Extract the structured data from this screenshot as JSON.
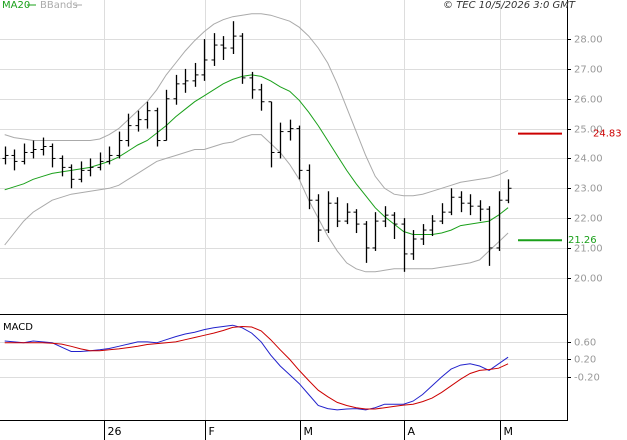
{
  "chart_data": [
    {
      "type": "ohlc",
      "copyright": "© TEC 10/5/2026 3:0 GMT",
      "xlim": [
        -0.5,
        59.2
      ],
      "xticks": [
        {
          "value": 10.4,
          "label": "26"
        },
        {
          "value": 21.05,
          "label": "F"
        },
        {
          "value": 31.05,
          "label": "M"
        },
        {
          "value": 42,
          "label": "A"
        },
        {
          "value": 52.1,
          "label": "M"
        }
      ],
      "ylim": [
        18.82,
        29.31
      ],
      "yticks": [
        {
          "value": 20,
          "label": "20.00"
        },
        {
          "value": 21,
          "label": "21.00"
        },
        {
          "value": 22,
          "label": "22.00"
        },
        {
          "value": 23,
          "label": "23.00"
        },
        {
          "value": 24,
          "label": "24.00"
        },
        {
          "value": 25,
          "label": "25.00"
        },
        {
          "value": 26,
          "label": "26.00"
        },
        {
          "value": 27,
          "label": "27.00"
        },
        {
          "value": 28,
          "label": "28.00"
        }
      ],
      "grid": true,
      "color": "#000000",
      "ohlc": [
        [
          24.0,
          24.4,
          23.8,
          24.1
        ],
        [
          24.1,
          24.3,
          23.6,
          23.9
        ],
        [
          23.9,
          24.5,
          23.8,
          24.2
        ],
        [
          24.2,
          24.6,
          24.0,
          24.3
        ],
        [
          24.3,
          24.7,
          24.1,
          24.4
        ],
        [
          24.4,
          24.5,
          23.7,
          24.0
        ],
        [
          24.0,
          24.1,
          23.4,
          23.7
        ],
        [
          23.7,
          23.8,
          23.0,
          23.3
        ],
        [
          23.3,
          23.9,
          23.2,
          23.6
        ],
        [
          23.6,
          24.0,
          23.4,
          23.7
        ],
        [
          23.7,
          24.2,
          23.6,
          23.9
        ],
        [
          23.9,
          24.4,
          23.8,
          24.1
        ],
        [
          24.1,
          24.9,
          24.0,
          24.6
        ],
        [
          24.6,
          25.5,
          24.4,
          25.1
        ],
        [
          25.1,
          25.6,
          24.9,
          25.3
        ],
        [
          25.3,
          25.9,
          25.0,
          25.6
        ],
        [
          25.6,
          25.7,
          24.4,
          24.6
        ],
        [
          24.6,
          26.3,
          24.6,
          26.0
        ],
        [
          26.0,
          26.8,
          25.8,
          26.5
        ],
        [
          26.5,
          27.0,
          26.2,
          26.6
        ],
        [
          26.6,
          27.2,
          26.4,
          26.8
        ],
        [
          26.8,
          28.0,
          26.6,
          27.3
        ],
        [
          27.3,
          28.2,
          27.1,
          27.8
        ],
        [
          27.8,
          28.1,
          27.3,
          27.7
        ],
        [
          27.7,
          28.6,
          27.5,
          28.1
        ],
        [
          28.1,
          28.2,
          26.5,
          26.7
        ],
        [
          26.7,
          26.9,
          26.0,
          26.3
        ],
        [
          26.3,
          26.5,
          25.6,
          25.9
        ],
        [
          25.9,
          25.9,
          23.7,
          24.2
        ],
        [
          24.2,
          25.2,
          24.0,
          24.9
        ],
        [
          24.9,
          25.3,
          24.6,
          25.0
        ],
        [
          25.0,
          25.1,
          23.3,
          23.6
        ],
        [
          23.6,
          23.8,
          22.3,
          22.6
        ],
        [
          22.6,
          22.8,
          21.2,
          21.6
        ],
        [
          21.6,
          22.9,
          21.5,
          22.5
        ],
        [
          22.5,
          22.7,
          21.7,
          21.9
        ],
        [
          21.9,
          22.5,
          21.8,
          22.2
        ],
        [
          22.2,
          22.3,
          21.5,
          21.8
        ],
        [
          21.8,
          21.9,
          20.5,
          21.0
        ],
        [
          21.0,
          22.2,
          20.9,
          21.9
        ],
        [
          21.9,
          22.4,
          21.7,
          22.1
        ],
        [
          22.1,
          22.2,
          21.3,
          21.8
        ],
        [
          21.8,
          22.0,
          20.2,
          20.8
        ],
        [
          20.8,
          21.6,
          20.6,
          21.3
        ],
        [
          21.3,
          21.8,
          21.1,
          21.6
        ],
        [
          21.6,
          22.1,
          21.4,
          21.9
        ],
        [
          21.9,
          22.5,
          21.8,
          22.2
        ],
        [
          22.2,
          23.0,
          22.1,
          22.7
        ],
        [
          22.7,
          22.9,
          22.2,
          22.5
        ],
        [
          22.5,
          22.8,
          22.1,
          22.4
        ],
        [
          22.4,
          22.6,
          21.9,
          22.3
        ],
        [
          22.3,
          22.4,
          20.4,
          21.0
        ],
        [
          21.0,
          22.9,
          20.9,
          22.6
        ],
        [
          22.6,
          23.3,
          22.5,
          23.0
        ]
      ],
      "series": [
        {
          "name": "MA20",
          "color": "#1aa01a",
          "values": [
            22.95,
            23.05,
            23.15,
            23.3,
            23.4,
            23.5,
            23.55,
            23.6,
            23.65,
            23.7,
            23.8,
            23.9,
            24.05,
            24.25,
            24.45,
            24.6,
            24.85,
            25.1,
            25.4,
            25.65,
            25.9,
            26.1,
            26.3,
            26.5,
            26.65,
            26.75,
            26.8,
            26.75,
            26.6,
            26.4,
            26.25,
            25.95,
            25.55,
            25.1,
            24.6,
            24.1,
            23.6,
            23.15,
            22.75,
            22.35,
            22.05,
            21.8,
            21.55,
            21.45,
            21.45,
            21.45,
            21.5,
            21.6,
            21.75,
            21.8,
            21.85,
            21.9,
            22.1,
            22.35
          ]
        },
        {
          "name": "BBands",
          "color": "#aaaaaa",
          "upper": [
            24.8,
            24.7,
            24.65,
            24.6,
            24.6,
            24.6,
            24.6,
            24.6,
            24.6,
            24.6,
            24.65,
            24.8,
            25.0,
            25.3,
            25.6,
            25.9,
            26.3,
            26.8,
            27.2,
            27.6,
            27.95,
            28.25,
            28.5,
            28.65,
            28.75,
            28.8,
            28.85,
            28.85,
            28.8,
            28.7,
            28.6,
            28.4,
            28.1,
            27.7,
            27.2,
            26.5,
            25.7,
            24.9,
            24.1,
            23.4,
            23.0,
            22.8,
            22.75,
            22.75,
            22.8,
            22.9,
            23.0,
            23.1,
            23.2,
            23.25,
            23.3,
            23.35,
            23.45,
            23.6
          ],
          "lower": [
            21.1,
            21.5,
            21.9,
            22.2,
            22.4,
            22.6,
            22.7,
            22.8,
            22.85,
            22.9,
            22.95,
            23.0,
            23.1,
            23.3,
            23.5,
            23.7,
            23.9,
            24.0,
            24.1,
            24.2,
            24.3,
            24.3,
            24.4,
            24.5,
            24.55,
            24.7,
            24.8,
            24.8,
            24.5,
            24.2,
            23.8,
            23.3,
            22.6,
            22.0,
            21.4,
            20.9,
            20.5,
            20.3,
            20.2,
            20.2,
            20.25,
            20.3,
            20.3,
            20.3,
            20.3,
            20.3,
            20.35,
            20.4,
            20.45,
            20.5,
            20.6,
            20.9,
            21.2,
            21.5
          ]
        }
      ],
      "price_tags": [
        {
          "value": 24.83,
          "color": "#cc0000"
        },
        {
          "value": 21.26,
          "color": "#1aa01a"
        }
      ]
    },
    {
      "type": "macd",
      "title": "MACD",
      "ylim": [
        -1.18,
        1.19
      ],
      "yticks": [
        {
          "value": 0.6,
          "label": "0.60"
        },
        {
          "value": 0.2,
          "label": "0.20"
        },
        {
          "value": -0.2,
          "label": "-0.20"
        }
      ],
      "series": [
        {
          "color": "#2222cc",
          "values": [
            0.62,
            0.6,
            0.58,
            0.62,
            0.6,
            0.58,
            0.48,
            0.38,
            0.38,
            0.4,
            0.42,
            0.45,
            0.5,
            0.55,
            0.6,
            0.6,
            0.58,
            0.65,
            0.72,
            0.78,
            0.82,
            0.88,
            0.92,
            0.95,
            0.98,
            0.92,
            0.8,
            0.6,
            0.3,
            0.05,
            -0.15,
            -0.35,
            -0.6,
            -0.85,
            -0.92,
            -0.95,
            -0.93,
            -0.92,
            -0.95,
            -0.9,
            -0.82,
            -0.82,
            -0.82,
            -0.75,
            -0.6,
            -0.4,
            -0.2,
            -0.02,
            0.07,
            0.1,
            0.05,
            -0.05,
            0.1,
            0.25
          ]
        },
        {
          "color": "#cc0000",
          "values": [
            0.58,
            0.58,
            0.58,
            0.58,
            0.58,
            0.57,
            0.55,
            0.5,
            0.44,
            0.4,
            0.4,
            0.42,
            0.44,
            0.47,
            0.5,
            0.54,
            0.56,
            0.58,
            0.6,
            0.65,
            0.7,
            0.75,
            0.8,
            0.86,
            0.93,
            0.95,
            0.94,
            0.85,
            0.65,
            0.42,
            0.2,
            -0.05,
            -0.28,
            -0.5,
            -0.65,
            -0.78,
            -0.85,
            -0.9,
            -0.93,
            -0.93,
            -0.9,
            -0.87,
            -0.84,
            -0.82,
            -0.76,
            -0.68,
            -0.55,
            -0.4,
            -0.25,
            -0.12,
            -0.05,
            -0.03,
            0.0,
            0.1
          ]
        }
      ]
    }
  ]
}
